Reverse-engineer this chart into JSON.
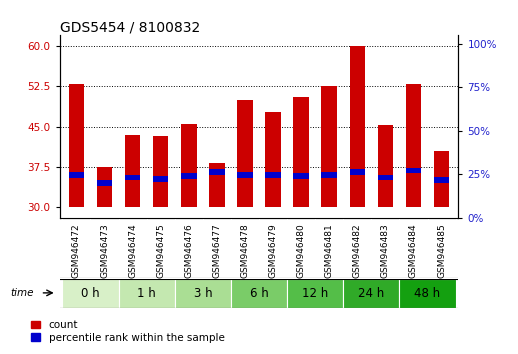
{
  "title": "GDS5454 / 8100832",
  "samples": [
    "GSM946472",
    "GSM946473",
    "GSM946474",
    "GSM946475",
    "GSM946476",
    "GSM946477",
    "GSM946478",
    "GSM946479",
    "GSM946480",
    "GSM946481",
    "GSM946482",
    "GSM946483",
    "GSM946484",
    "GSM946485"
  ],
  "count_values": [
    53.0,
    37.5,
    43.5,
    43.2,
    45.5,
    38.2,
    50.0,
    47.8,
    50.5,
    52.5,
    60.0,
    45.2,
    53.0,
    40.5
  ],
  "percentile_values": [
    36.0,
    34.5,
    35.5,
    35.2,
    35.8,
    36.5,
    36.0,
    36.0,
    35.8,
    36.0,
    36.5,
    35.5,
    36.8,
    35.0
  ],
  "time_groups": [
    {
      "label": "0 h",
      "start": 0,
      "end": 2,
      "color": "#d8f0c8"
    },
    {
      "label": "1 h",
      "start": 2,
      "end": 4,
      "color": "#c4e8b0"
    },
    {
      "label": "3 h",
      "start": 4,
      "end": 6,
      "color": "#aade94"
    },
    {
      "label": "6 h",
      "start": 6,
      "end": 8,
      "color": "#7acc68"
    },
    {
      "label": "12 h",
      "start": 8,
      "end": 10,
      "color": "#54be48"
    },
    {
      "label": "24 h",
      "start": 10,
      "end": 12,
      "color": "#30aa28"
    },
    {
      "label": "48 h",
      "start": 12,
      "end": 14,
      "color": "#14a010"
    }
  ],
  "ylim_left": [
    28,
    62
  ],
  "ylim_right": [
    0,
    105
  ],
  "yticks_left": [
    30,
    37.5,
    45,
    52.5,
    60
  ],
  "yticks_right": [
    0,
    25,
    50,
    75,
    100
  ],
  "bar_color": "#cc0000",
  "percentile_color": "#0000cc",
  "bar_width": 0.55,
  "grid_yticks": [
    37.5,
    45.0,
    52.5,
    60.0
  ],
  "bg_color": "#ffffff",
  "title_fontsize": 10,
  "tick_fontsize": 7.5,
  "time_label_fontsize": 8.5,
  "sample_label_fontsize": 6.5
}
